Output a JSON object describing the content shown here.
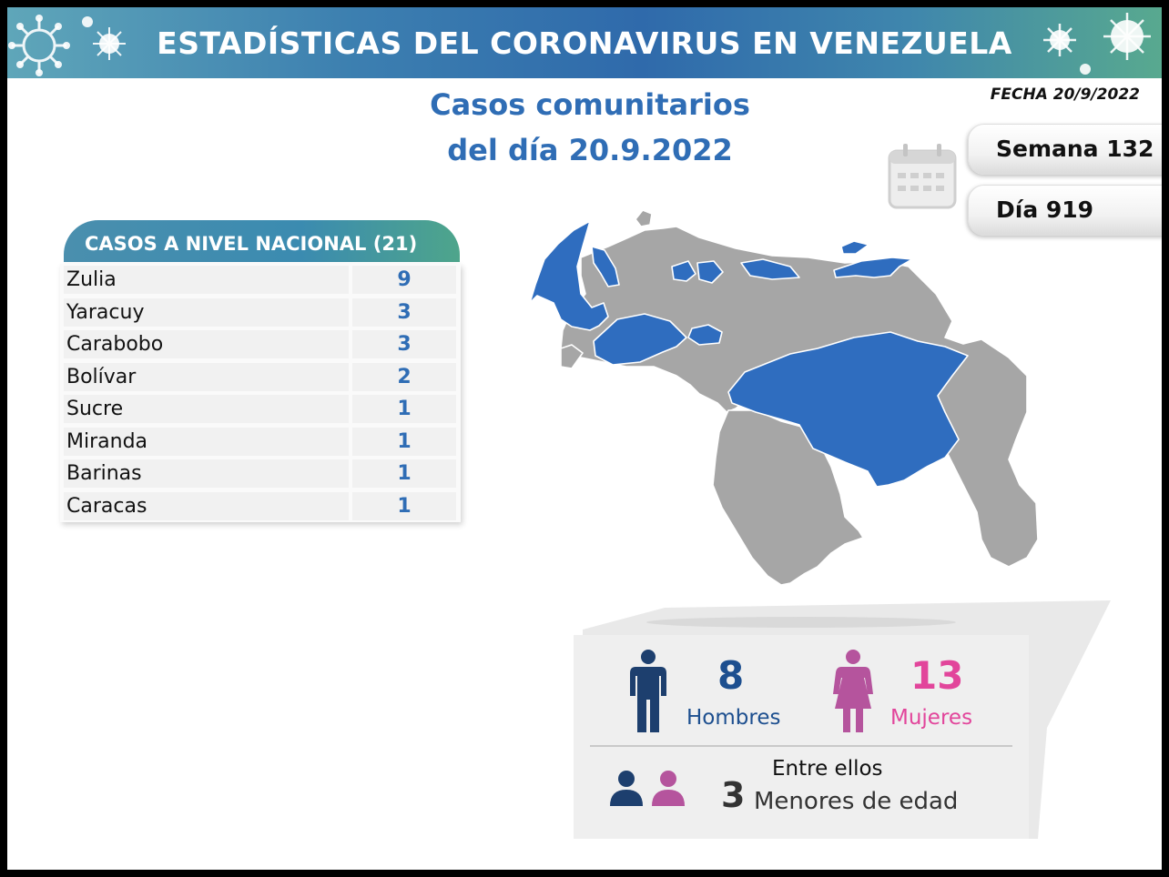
{
  "banner": {
    "title": "ESTADÍSTICAS DEL CORONAVIRUS EN VENEZUELA"
  },
  "subtitle": {
    "line1": "Casos comunitarios",
    "line2": "del día 20.9.2022"
  },
  "fecha": "FECHA 20/9/2022",
  "semana": "Semana 132",
  "dia": "Día 919",
  "table": {
    "title": "CASOS A NIVEL NACIONAL  (21)",
    "rows": [
      {
        "state": "Zulia",
        "cases": "9"
      },
      {
        "state": "Yaracuy",
        "cases": "3"
      },
      {
        "state": "Carabobo",
        "cases": "3"
      },
      {
        "state": "Bolívar",
        "cases": "2"
      },
      {
        "state": "Sucre",
        "cases": "1"
      },
      {
        "state": "Miranda",
        "cases": "1"
      },
      {
        "state": "Barinas",
        "cases": "1"
      },
      {
        "state": "Caracas",
        "cases": "1"
      }
    ]
  },
  "gender": {
    "men_count": "8",
    "men_label": "Hombres",
    "women_count": "13",
    "women_label": "Mujeres",
    "minors_intro": "Entre ellos",
    "minors_count": "3",
    "minors_label": "Menores de edad"
  },
  "colors": {
    "highlight_state": "#2f6dbf",
    "other_state": "#a6a6a6",
    "men": "#1d3f6e",
    "women": "#b5549d",
    "accent": "#2f6db5"
  },
  "icons": [
    "virus-icon",
    "calendar-icon",
    "man-icon",
    "woman-icon",
    "children-icon"
  ]
}
